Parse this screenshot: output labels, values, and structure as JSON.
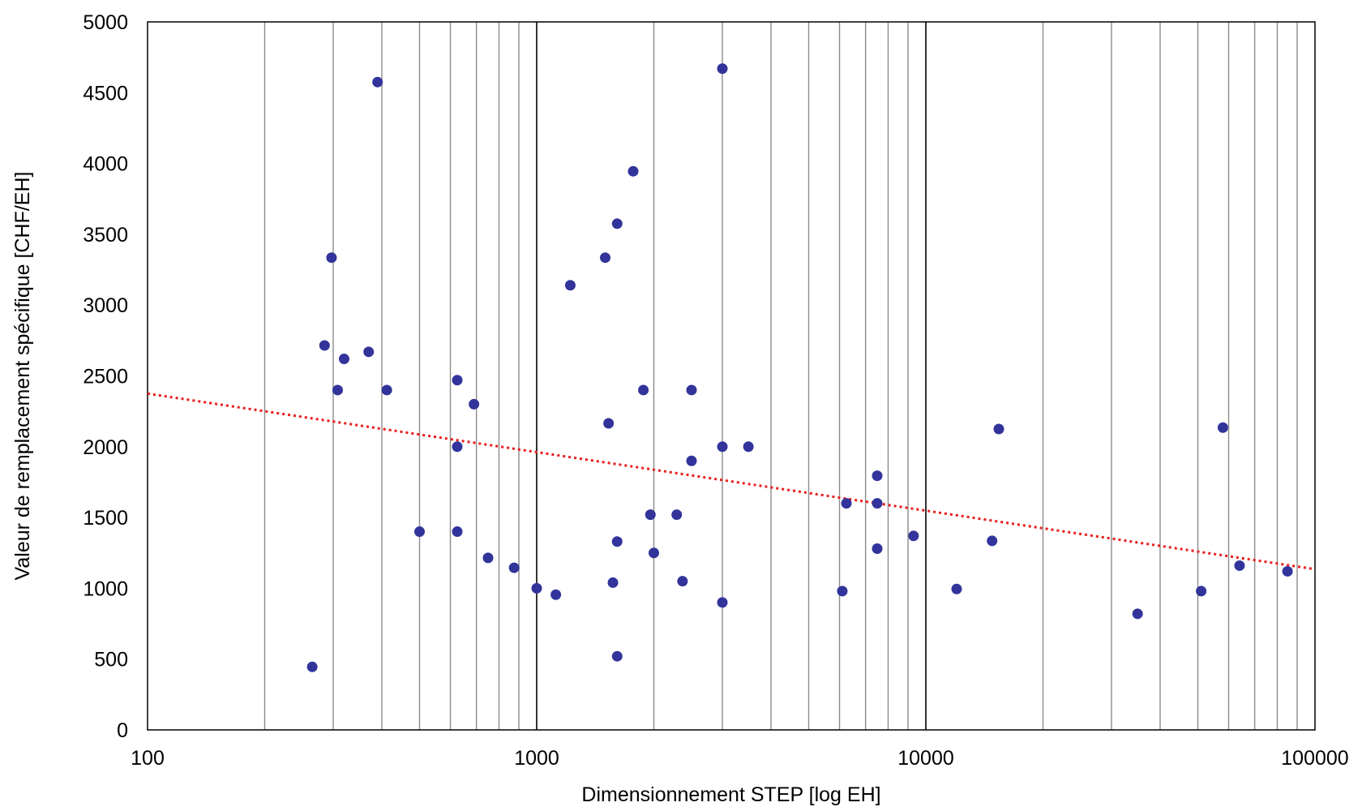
{
  "chart_data": {
    "type": "scatter",
    "title": "",
    "xlabel": "Dimensionnement STEP [log EH]",
    "ylabel": "Valeur de remplacement spécifique [CHF/EH]",
    "x_scale": "log",
    "xlim": [
      100,
      100000
    ],
    "ylim": [
      0,
      5000
    ],
    "x_ticks": [
      100,
      1000,
      10000,
      100000
    ],
    "y_ticks": [
      0,
      500,
      1000,
      1500,
      2000,
      2500,
      3000,
      3500,
      4000,
      4500,
      5000
    ],
    "grid": "vertical log minor gridlines, major decades emphasized",
    "legend": "none",
    "colors": {
      "points": "#32349b",
      "trendline": "#ee1c1c",
      "grid_minor": "#8c8c8c",
      "grid_major": "#000000"
    },
    "series": [
      {
        "points": [
          [
            265,
            445
          ],
          [
            285,
            2715
          ],
          [
            297,
            3335
          ],
          [
            308,
            2400
          ],
          [
            320,
            2620
          ],
          [
            370,
            2670
          ],
          [
            390,
            4575
          ],
          [
            412,
            2400
          ],
          [
            500,
            1400
          ],
          [
            625,
            2470
          ],
          [
            625,
            2000
          ],
          [
            625,
            1400
          ],
          [
            690,
            2300
          ],
          [
            750,
            1215
          ],
          [
            875,
            1145
          ],
          [
            1000,
            1000
          ],
          [
            1120,
            955
          ],
          [
            1220,
            3140
          ],
          [
            1500,
            3335
          ],
          [
            1530,
            2165
          ],
          [
            1570,
            1040
          ],
          [
            1610,
            3575
          ],
          [
            1610,
            1330
          ],
          [
            1610,
            520
          ],
          [
            1770,
            3945
          ],
          [
            1880,
            2400
          ],
          [
            1960,
            1520
          ],
          [
            2000,
            1250
          ],
          [
            2290,
            1520
          ],
          [
            2370,
            1050
          ],
          [
            2500,
            2400
          ],
          [
            2500,
            1900
          ],
          [
            3000,
            4670
          ],
          [
            3000,
            2000
          ],
          [
            3000,
            900
          ],
          [
            3500,
            2000
          ],
          [
            6100,
            980
          ],
          [
            6250,
            1600
          ],
          [
            7500,
            1795
          ],
          [
            7500,
            1600
          ],
          [
            7500,
            1280
          ],
          [
            9300,
            1370
          ],
          [
            12000,
            995
          ],
          [
            14800,
            1335
          ],
          [
            15400,
            2125
          ],
          [
            35000,
            820
          ],
          [
            51000,
            980
          ],
          [
            58000,
            2135
          ],
          [
            64000,
            1160
          ],
          [
            85000,
            1120
          ]
        ]
      }
    ],
    "trendline": {
      "style": "dotted",
      "kind": "logarithmic",
      "x": [
        100,
        100000
      ],
      "y": [
        2375,
        1135
      ]
    }
  }
}
